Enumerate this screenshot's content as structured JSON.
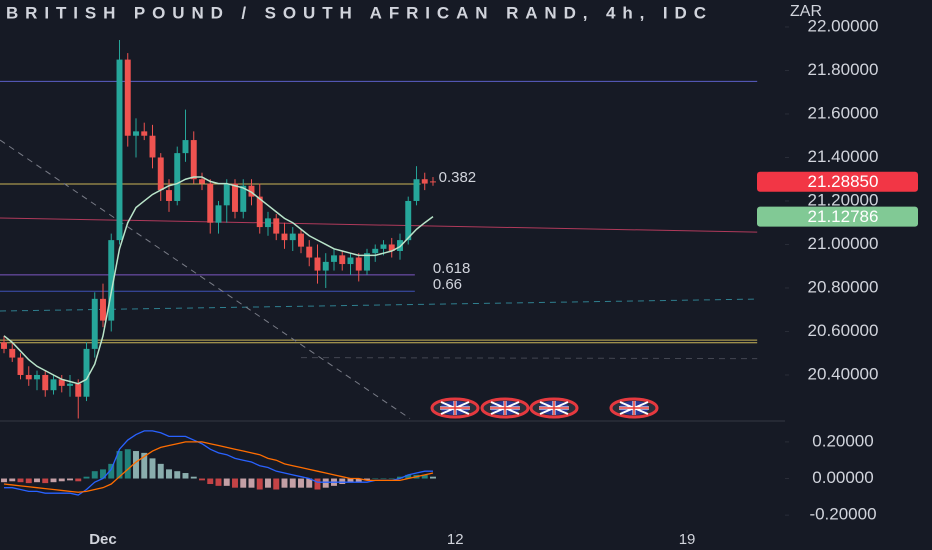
{
  "chart_data": [
    {
      "type": "candlestick",
      "title": "BRITISH POUND / SOUTH AFRICAN RAND, 4h, IDC",
      "currency": "ZAR",
      "xlim": [
        -0.485,
        94.67
      ],
      "ylim": [
        20.193,
        22.124
      ],
      "yticks": [
        {
          "value": 20.4,
          "label": "20.40000"
        },
        {
          "value": 20.6,
          "label": "20.60000"
        },
        {
          "value": 20.8,
          "label": "20.80000"
        },
        {
          "value": 21.0,
          "label": "21.00000"
        },
        {
          "value": 21.2,
          "label": "21.20000"
        },
        {
          "value": 21.4,
          "label": "21.40000"
        },
        {
          "value": 21.6,
          "label": "21.60000"
        },
        {
          "value": 21.8,
          "label": "21.80000"
        },
        {
          "value": 22.0,
          "label": "22.00000"
        }
      ],
      "up_color": "#26a69a",
      "down_color": "#ef5350",
      "open": [
        20.55,
        20.52,
        20.48,
        20.4,
        20.38,
        20.4,
        20.33,
        20.38,
        20.35,
        20.36,
        20.3,
        20.52,
        20.75,
        20.65,
        21.02,
        21.85,
        21.5,
        21.52,
        21.5,
        21.4,
        21.25,
        21.2,
        21.42,
        21.48,
        21.3,
        21.28,
        21.1,
        21.18,
        21.28,
        21.15,
        21.27,
        21.22,
        21.08,
        21.12,
        21.05,
        21.02,
        21.05,
        20.99,
        20.94,
        20.88,
        20.92,
        20.95,
        20.91,
        20.94,
        20.88,
        20.96,
        20.98,
        21.0,
        20.97,
        21.02,
        21.2,
        21.3,
        21.29
      ],
      "high": [
        20.58,
        20.55,
        20.5,
        20.44,
        20.42,
        20.42,
        20.4,
        20.4,
        20.4,
        20.38,
        20.55,
        20.78,
        20.82,
        21.05,
        21.94,
        21.88,
        21.58,
        21.56,
        21.55,
        21.42,
        21.3,
        21.45,
        21.62,
        21.52,
        21.33,
        21.3,
        21.2,
        21.3,
        21.3,
        21.3,
        21.3,
        21.28,
        21.15,
        21.14,
        21.1,
        21.08,
        21.07,
        21.02,
        21.0,
        20.96,
        20.98,
        20.97,
        20.96,
        20.96,
        20.98,
        21.0,
        21.02,
        21.03,
        21.05,
        21.22,
        21.36,
        21.33,
        21.31
      ],
      "low": [
        20.5,
        20.46,
        20.38,
        20.35,
        20.33,
        20.3,
        20.31,
        20.32,
        20.3,
        20.2,
        20.28,
        20.48,
        20.62,
        20.6,
        21.0,
        21.45,
        21.4,
        21.48,
        21.35,
        21.2,
        21.15,
        21.18,
        21.38,
        21.28,
        21.25,
        21.05,
        21.05,
        21.1,
        21.12,
        21.12,
        21.18,
        21.05,
        21.04,
        21.02,
        20.98,
        20.97,
        20.96,
        20.9,
        20.82,
        20.8,
        20.88,
        20.88,
        20.86,
        20.83,
        20.86,
        20.92,
        20.95,
        20.94,
        20.93,
        21.0,
        21.18,
        21.25,
        21.27
      ],
      "close": [
        20.52,
        20.48,
        20.4,
        20.38,
        20.4,
        20.33,
        20.38,
        20.35,
        20.36,
        20.3,
        20.52,
        20.75,
        20.65,
        21.02,
        21.85,
        21.5,
        21.52,
        21.5,
        21.4,
        21.25,
        21.2,
        21.42,
        21.48,
        21.3,
        21.28,
        21.1,
        21.18,
        21.28,
        21.15,
        21.27,
        21.22,
        21.08,
        21.12,
        21.05,
        21.02,
        21.05,
        20.99,
        20.94,
        20.88,
        20.92,
        20.95,
        20.91,
        20.94,
        20.88,
        20.96,
        20.98,
        21.0,
        20.97,
        21.02,
        21.2,
        21.3,
        21.28,
        21.2885
      ],
      "ma": {
        "color": "#b9e4c9",
        "values": [
          20.58,
          20.55,
          20.51,
          20.47,
          20.44,
          20.42,
          20.4,
          20.38,
          20.37,
          20.36,
          20.38,
          20.45,
          20.58,
          20.78,
          20.98,
          21.1,
          21.17,
          21.2,
          21.23,
          21.25,
          21.27,
          21.28,
          21.3,
          21.31,
          21.31,
          21.29,
          21.28,
          21.28,
          21.27,
          21.26,
          21.24,
          21.21,
          21.18,
          21.15,
          21.12,
          21.1,
          21.07,
          21.04,
          21.02,
          21.0,
          20.98,
          20.97,
          20.96,
          20.95,
          20.95,
          20.95,
          20.96,
          20.97,
          20.99,
          21.03,
          21.07,
          21.1,
          21.12786
        ]
      },
      "price_labels": [
        {
          "value": 21.2885,
          "label": "21.28850",
          "color": "#f23645"
        },
        {
          "value": 21.12786,
          "label": "21.12786",
          "color": "#81c995"
        }
      ],
      "levels": [
        {
          "value": 21.75,
          "color": "#5b5fc7",
          "x_end": 91.3
        },
        {
          "value": 21.278,
          "color": "#c9b458",
          "x_end": 50.5,
          "label": "0.382",
          "label_color": "#f0a060"
        },
        {
          "value": 20.86,
          "color": "#7e57c2",
          "x_end": 49.8,
          "label": "0.618",
          "label_color": "#5b5fc7"
        },
        {
          "value": 20.785,
          "color": "#3f51b5",
          "x_end": 49.8,
          "label": "0.66",
          "label_color": "#5b73d1"
        },
        {
          "value": 20.56,
          "color": "#c9b458",
          "x_end": 91.3
        },
        {
          "value": 20.548,
          "color": "#c9b458",
          "x_end": 91.3
        }
      ],
      "trendlines": [
        {
          "from": [
            -0.485,
            21.122
          ],
          "to": [
            91.3,
            21.057
          ],
          "color": "#b03a5b",
          "dash": false
        },
        {
          "from": [
            -0.485,
            20.694
          ],
          "to": [
            91.3,
            20.749
          ],
          "color": "#2f7f8f",
          "dash": true
        },
        {
          "from": [
            -0.485,
            21.48
          ],
          "to": [
            49.2,
            20.2
          ],
          "color": "#787b86",
          "dash": true
        },
        {
          "from": [
            36,
            20.48
          ],
          "to": [
            91.3,
            20.475
          ],
          "color": "#434651",
          "dash": true
        }
      ]
    },
    {
      "type": "macd",
      "xlim": [
        -0.485,
        94.67
      ],
      "ylim": [
        -0.281,
        0.314
      ],
      "yticks": [
        {
          "value": -0.2,
          "label": "-0.20000"
        },
        {
          "value": 0,
          "label": "0.00000"
        },
        {
          "value": 0.2,
          "label": "0.20000"
        }
      ],
      "xticks": [
        {
          "value": 12,
          "label": "Dec"
        },
        {
          "value": 54.7,
          "label": "12"
        },
        {
          "value": 82.8,
          "label": "19"
        }
      ],
      "histogram": {
        "colors": [
          "#26a69a",
          "#b2dfdb",
          "#ffcdd2",
          "#ff5252"
        ],
        "values": [
          -0.02,
          -0.015,
          -0.02,
          -0.025,
          -0.02,
          -0.025,
          -0.02,
          -0.015,
          -0.01,
          -0.015,
          0.01,
          0.04,
          0.05,
          0.08,
          0.15,
          0.16,
          0.15,
          0.14,
          0.11,
          0.08,
          0.05,
          0.04,
          0.03,
          0.01,
          -0.01,
          -0.03,
          -0.04,
          -0.04,
          -0.05,
          -0.05,
          -0.05,
          -0.06,
          -0.05,
          -0.06,
          -0.05,
          -0.05,
          -0.05,
          -0.05,
          -0.06,
          -0.05,
          -0.04,
          -0.03,
          -0.02,
          -0.02,
          -0.01,
          0.0,
          0.0,
          0.0,
          0.01,
          0.02,
          0.02,
          0.02,
          0.01
        ]
      },
      "macd": {
        "color": "#2962ff",
        "values": [
          -0.05,
          -0.05,
          -0.06,
          -0.07,
          -0.07,
          -0.08,
          -0.08,
          -0.08,
          -0.08,
          -0.09,
          -0.06,
          -0.02,
          0.0,
          0.05,
          0.16,
          0.21,
          0.24,
          0.26,
          0.26,
          0.25,
          0.23,
          0.23,
          0.23,
          0.21,
          0.19,
          0.16,
          0.14,
          0.13,
          0.11,
          0.1,
          0.09,
          0.07,
          0.06,
          0.04,
          0.03,
          0.02,
          0.01,
          0.0,
          -0.02,
          -0.02,
          -0.02,
          -0.02,
          -0.02,
          -0.02,
          -0.02,
          -0.01,
          -0.01,
          -0.01,
          0.0,
          0.02,
          0.03,
          0.04,
          0.04
        ]
      },
      "signal": {
        "color": "#ff6d00",
        "values": [
          -0.03,
          -0.035,
          -0.04,
          -0.045,
          -0.05,
          -0.055,
          -0.06,
          -0.065,
          -0.07,
          -0.075,
          -0.07,
          -0.06,
          -0.05,
          -0.03,
          0.01,
          0.05,
          0.09,
          0.12,
          0.15,
          0.17,
          0.18,
          0.19,
          0.2,
          0.2,
          0.2,
          0.19,
          0.18,
          0.17,
          0.16,
          0.15,
          0.14,
          0.13,
          0.11,
          0.1,
          0.08,
          0.07,
          0.06,
          0.05,
          0.04,
          0.03,
          0.02,
          0.01,
          0.0,
          0.0,
          -0.01,
          -0.01,
          -0.01,
          -0.01,
          -0.01,
          0.0,
          0.01,
          0.02,
          0.03
        ]
      }
    }
  ]
}
